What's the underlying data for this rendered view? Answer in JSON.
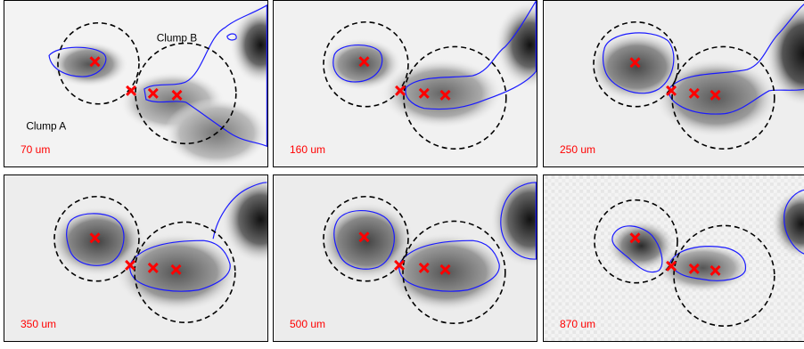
{
  "panels": [
    {
      "wavelength": "70 um",
      "label_a": "Clump A",
      "label_b": "Clump B"
    },
    {
      "wavelength": "160 um"
    },
    {
      "wavelength": "250 um"
    },
    {
      "wavelength": "350 um"
    },
    {
      "wavelength": "500 um"
    },
    {
      "wavelength": "870 um"
    }
  ],
  "colors": {
    "contour": "#1a1aff",
    "marker": "#ff0000",
    "circle": "#000000"
  }
}
